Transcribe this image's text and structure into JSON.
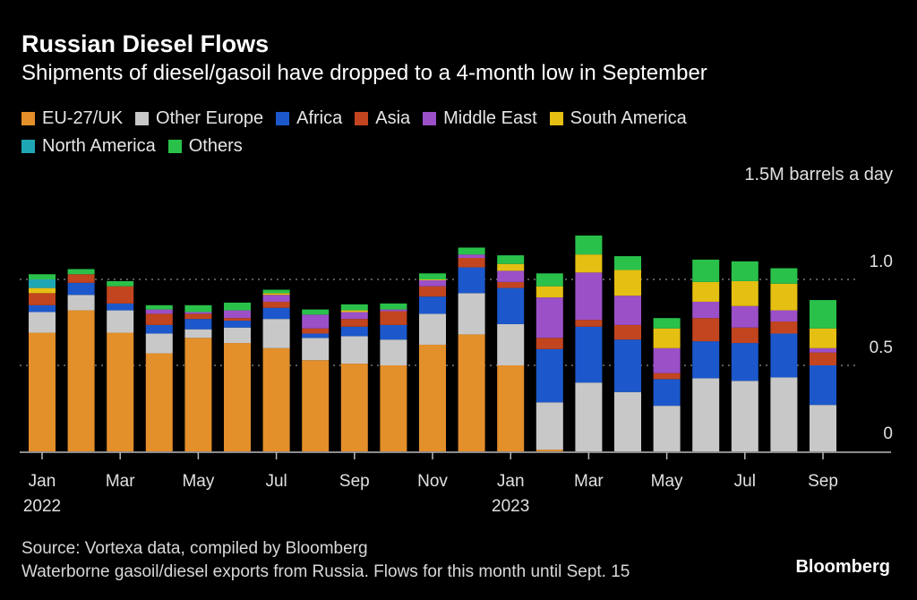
{
  "chart_data": {
    "type": "bar",
    "stacked": true,
    "title": "Russian Diesel Flows",
    "subtitle": "Shipments of diesel/gasoil have dropped to a 4-month low in September",
    "ylabel": "1.5M barrels a day",
    "ylim": [
      0,
      1.5
    ],
    "yticks": [
      "0",
      "0.5",
      "1.0"
    ],
    "ytick_values": [
      0,
      0.5,
      1.0
    ],
    "grid": true,
    "legend_position": "top-left",
    "categories": [
      "Jan 2022",
      "Feb 2022",
      "Mar 2022",
      "Apr 2022",
      "May 2022",
      "Jun 2022",
      "Jul 2022",
      "Aug 2022",
      "Sep 2022",
      "Oct 2022",
      "Nov 2022",
      "Dec 2022",
      "Jan 2023",
      "Feb 2023",
      "Mar 2023",
      "Apr 2023",
      "May 2023",
      "Jun 2023",
      "Jul 2023",
      "Aug 2023",
      "Sep 2023"
    ],
    "xtick_labels": [
      {
        "index": 0,
        "label": "Jan",
        "year": "2022"
      },
      {
        "index": 2,
        "label": "Mar"
      },
      {
        "index": 4,
        "label": "May"
      },
      {
        "index": 6,
        "label": "Jul"
      },
      {
        "index": 8,
        "label": "Sep"
      },
      {
        "index": 10,
        "label": "Nov"
      },
      {
        "index": 12,
        "label": "Jan",
        "year": "2023"
      },
      {
        "index": 14,
        "label": "Mar"
      },
      {
        "index": 16,
        "label": "May"
      },
      {
        "index": 18,
        "label": "Jul"
      },
      {
        "index": 20,
        "label": "Sep"
      }
    ],
    "series": [
      {
        "name": "EU-27/UK",
        "color": "#e38f2a",
        "values": [
          0.69,
          0.82,
          0.69,
          0.57,
          0.66,
          0.63,
          0.6,
          0.53,
          0.51,
          0.5,
          0.62,
          0.68,
          0.5,
          0.01,
          0,
          0,
          0,
          0,
          0,
          0,
          0
        ]
      },
      {
        "name": "Other Europe",
        "color": "#c8c8c8",
        "values": [
          0.12,
          0.09,
          0.13,
          0.115,
          0.05,
          0.09,
          0.17,
          0.13,
          0.16,
          0.15,
          0.18,
          0.24,
          0.24,
          0.275,
          0.4,
          0.345,
          0.265,
          0.425,
          0.41,
          0.43,
          0.27
        ]
      },
      {
        "name": "Africa",
        "color": "#1c58cc",
        "values": [
          0.04,
          0.07,
          0.04,
          0.05,
          0.06,
          0.04,
          0.065,
          0.025,
          0.055,
          0.085,
          0.1,
          0.15,
          0.21,
          0.31,
          0.325,
          0.305,
          0.155,
          0.215,
          0.22,
          0.255,
          0.23
        ]
      },
      {
        "name": "Asia",
        "color": "#c2451f",
        "values": [
          0.07,
          0.05,
          0.1,
          0.065,
          0.03,
          0.015,
          0.035,
          0.03,
          0.045,
          0.08,
          0.06,
          0.055,
          0.035,
          0.065,
          0.04,
          0.085,
          0.035,
          0.135,
          0.09,
          0.07,
          0.075
        ]
      },
      {
        "name": "Middle East",
        "color": "#9b50c8",
        "values": [
          0,
          0,
          0,
          0.025,
          0.01,
          0.045,
          0.04,
          0.08,
          0.04,
          0.01,
          0.035,
          0.02,
          0.065,
          0.235,
          0.275,
          0.17,
          0.145,
          0.095,
          0.125,
          0.065,
          0.025
        ]
      },
      {
        "name": "South America",
        "color": "#e5bf12",
        "values": [
          0.03,
          0,
          0,
          0,
          0,
          0,
          0.01,
          0,
          0.01,
          0,
          0.005,
          0,
          0.04,
          0.065,
          0.105,
          0.15,
          0.115,
          0.115,
          0.145,
          0.155,
          0.115
        ]
      },
      {
        "name": "North America",
        "color": "#1fa6b4",
        "values": [
          0.05,
          0,
          0,
          0,
          0,
          0,
          0,
          0,
          0,
          0,
          0,
          0,
          0,
          0,
          0,
          0,
          0,
          0,
          0,
          0,
          0
        ]
      },
      {
        "name": "Others",
        "color": "#2ac14a",
        "values": [
          0.03,
          0.03,
          0.03,
          0.025,
          0.04,
          0.045,
          0.02,
          0.03,
          0.035,
          0.035,
          0.035,
          0.04,
          0.05,
          0.075,
          0.11,
          0.08,
          0.06,
          0.13,
          0.115,
          0.09,
          0.165
        ]
      }
    ]
  },
  "footer": {
    "source": "Source: Vortexa data, compiled by Bloomberg",
    "note": "Waterborne gasoil/diesel exports from Russia. Flows for this month until Sept. 15",
    "brand": "Bloomberg"
  }
}
